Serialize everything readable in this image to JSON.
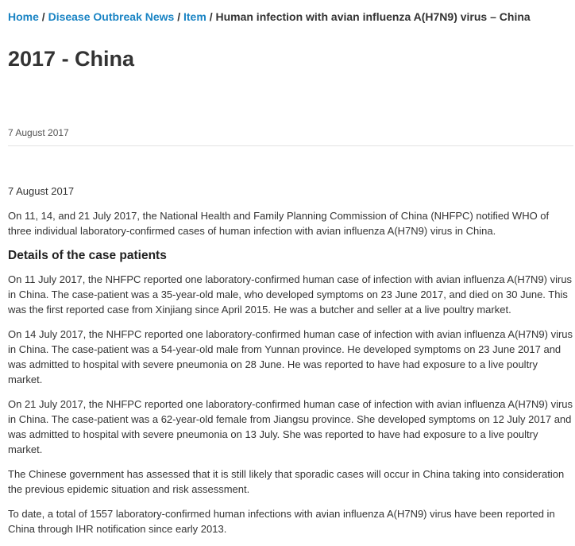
{
  "breadcrumb": {
    "items": [
      "Home",
      "Disease Outbreak News",
      "Item"
    ],
    "separator": "/",
    "current": "Human infection with avian influenza A(H7N9) virus – China"
  },
  "page_title": "2017 - China",
  "date_top": "7 August 2017",
  "body": {
    "date": "7 August 2017",
    "intro": "On 11, 14, and 21 July 2017, the National Health and Family Planning Commission of China (NHFPC) notified WHO of three individual laboratory-confirmed cases of human infection with avian influenza A(H7N9) virus in China.",
    "heading": "Details of the case patients",
    "paragraphs": [
      "On 11 July 2017, the NHFPC reported one laboratory-confirmed human case of infection with avian influenza A(H7N9) virus in China. The case-patient was a 35-year-old male, who developed symptoms on 23 June 2017, and died on 30 June. This was the first reported case from Xinjiang since April 2015. He was a butcher and seller at a live poultry market.",
      "On 14 July 2017, the NHFPC reported one laboratory-confirmed human case of infection with avian influenza A(H7N9) virus in China. The case-patient was a 54-year-old male from Yunnan province. He developed symptoms on 23 June 2017 and was admitted to hospital with severe pneumonia on 28 June. He was reported to have had exposure to a live poultry market.",
      "On 21 July 2017, the NHFPC reported one laboratory-confirmed human case of infection with avian influenza A(H7N9) virus in China. The case-patient was a 62-year-old female from Jiangsu province. She developed symptoms on 12 July 2017 and was admitted to hospital with severe pneumonia on 13 July. She was reported to have had exposure to a live poultry market.",
      "The Chinese government has assessed that it is still likely that sporadic cases will occur in China taking into consideration the previous epidemic situation and risk assessment.",
      "To date, a total of 1557 laboratory-confirmed human infections with avian influenza A(H7N9) virus have been reported in China through IHR notification since early 2013."
    ]
  },
  "colors": {
    "link": "#1a84c4",
    "text": "#333333",
    "divider": "#e3e3e3"
  }
}
